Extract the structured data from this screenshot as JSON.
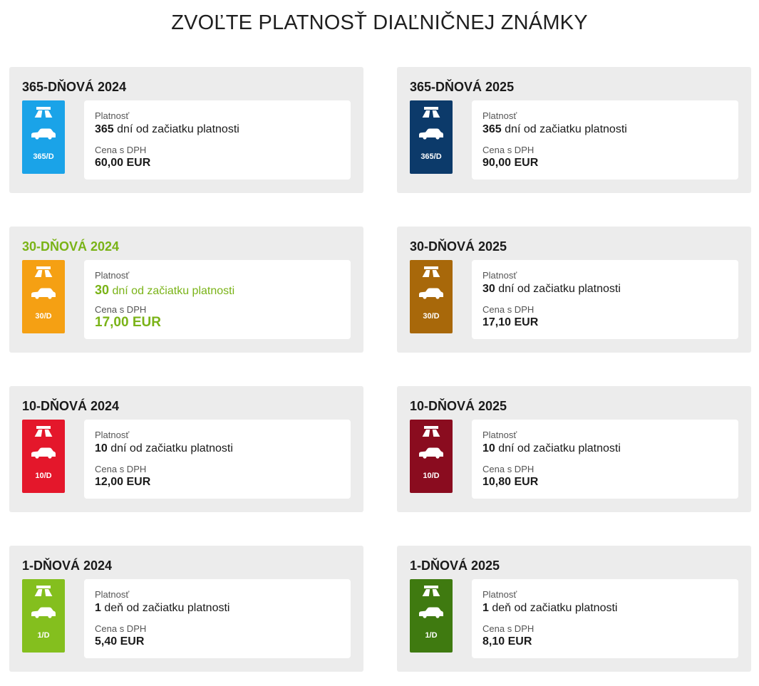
{
  "page_title": "ZVOĽTE PLATNOSŤ DIAĽNIČNEJ ZNÁMKY",
  "labels": {
    "validity_label": "Platnosť",
    "price_label": "Cena s DPH"
  },
  "icons": {
    "badge_road": "highway-icon",
    "badge_car": "car-icon"
  },
  "colors": {
    "active_text": "#7ab317"
  },
  "cards": [
    {
      "title": "365-DŇOVÁ 2024",
      "badge_label": "365/D",
      "badge_color": "#1aa3e8",
      "validity_num": "365",
      "validity_rest": " dní od začiatku platnosti",
      "price": "60,00 EUR",
      "selected": false
    },
    {
      "title": "365-DŇOVÁ 2025",
      "badge_label": "365/D",
      "badge_color": "#0c3a6a",
      "validity_num": "365",
      "validity_rest": " dní od začiatku platnosti",
      "price": "90,00 EUR",
      "selected": false
    },
    {
      "title": "30-DŇOVÁ 2024",
      "badge_label": "30/D",
      "badge_color": "#f5a013",
      "validity_num": "30",
      "validity_rest": " dní od začiatku platnosti",
      "price": "17,00 EUR",
      "selected": true
    },
    {
      "title": "30-DŇOVÁ 2025",
      "badge_label": "30/D",
      "badge_color": "#a8680a",
      "validity_num": "30",
      "validity_rest": " dní od začiatku platnosti",
      "price": "17,10 EUR",
      "selected": false
    },
    {
      "title": "10-DŇOVÁ 2024",
      "badge_label": "10/D",
      "badge_color": "#e4172b",
      "validity_num": "10",
      "validity_rest": " dní od začiatku platnosti",
      "price": "12,00 EUR",
      "selected": false
    },
    {
      "title": "10-DŇOVÁ 2025",
      "badge_label": "10/D",
      "badge_color": "#8a0c1f",
      "validity_num": "10",
      "validity_rest": " dní od začiatku platnosti",
      "price": "10,80 EUR",
      "selected": false
    },
    {
      "title": "1-DŇOVÁ 2024",
      "badge_label": "1/D",
      "badge_color": "#84bf1e",
      "validity_num": "1",
      "validity_rest": " deň od začiatku platnosti",
      "price": "5,40 EUR",
      "selected": false
    },
    {
      "title": "1-DŇOVÁ 2025",
      "badge_label": "1/D",
      "badge_color": "#3f7a10",
      "validity_num": "1",
      "validity_rest": " deň od začiatku platnosti",
      "price": "8,10 EUR",
      "selected": false
    }
  ]
}
